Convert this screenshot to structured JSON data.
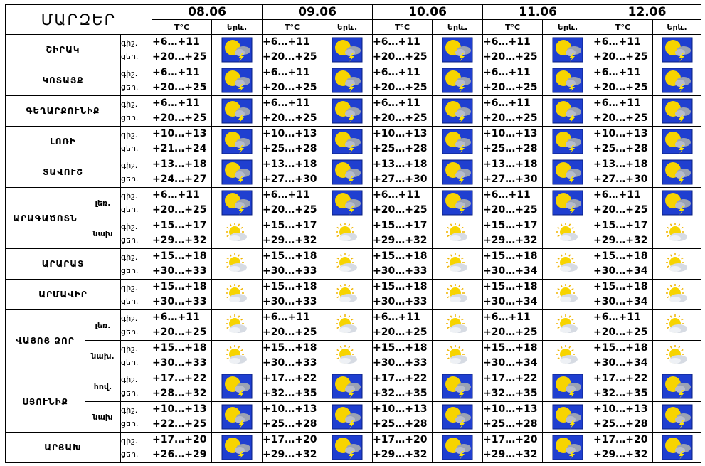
{
  "header": {
    "regions_title": "ՄԱՐԶԵՐ",
    "temp_label": "T°C",
    "weather_label": "Երև.",
    "dates": [
      "08.06",
      "09.06",
      "10.06",
      "11.06",
      "12.06"
    ]
  },
  "rows": [
    {
      "region": "ՇԻՐԱԿ",
      "tod": [
        "գիշ.",
        "ցեր."
      ],
      "temps": [
        [
          "+6…+11",
          "+20…+25"
        ],
        [
          "+6…+11",
          "+20…+25"
        ],
        [
          "+6…+11",
          "+20…+25"
        ],
        [
          "+6…+11",
          "+20…+25"
        ],
        [
          "+6…+11",
          "+20…+25"
        ]
      ],
      "icons": [
        "storm",
        "storm",
        "storm",
        "storm",
        "storm"
      ]
    },
    {
      "region": "ԿՈՏԱՅՔ",
      "tod": [
        "գիշ.",
        "ցեր."
      ],
      "temps": [
        [
          "+6…+11",
          "+20…+25"
        ],
        [
          "+6…+11",
          "+20…+25"
        ],
        [
          "+6…+11",
          "+20…+25"
        ],
        [
          "+6…+11",
          "+20…+25"
        ],
        [
          "+6…+11",
          "+20…+25"
        ]
      ],
      "icons": [
        "storm",
        "storm",
        "storm",
        "storm",
        "storm"
      ]
    },
    {
      "region": "ԳԵՂԱՐՔՈՒՆԻՔ",
      "tod": [
        "գիշ.",
        "ցեր."
      ],
      "temps": [
        [
          "+6…+11",
          "+20…+25"
        ],
        [
          "+6…+11",
          "+20…+25"
        ],
        [
          "+6…+11",
          "+20…+25"
        ],
        [
          "+6…+11",
          "+20…+25"
        ],
        [
          "+6…+11",
          "+20…+25"
        ]
      ],
      "icons": [
        "storm",
        "storm",
        "storm",
        "storm",
        "storm"
      ]
    },
    {
      "region": "ԼՈՌԻ",
      "tod": [
        "գիշ.",
        "ցեր."
      ],
      "temps": [
        [
          "+10…+13",
          "+21…+24"
        ],
        [
          "+10…+13",
          "+25…+28"
        ],
        [
          "+10…+13",
          "+25…+28"
        ],
        [
          "+10…+13",
          "+25…+28"
        ],
        [
          "+10…+13",
          "+25…+28"
        ]
      ],
      "icons": [
        "storm",
        "storm",
        "storm",
        "storm",
        "storm"
      ]
    },
    {
      "region": "ՏԱՎՈՒՇ",
      "tod": [
        "գիշ.",
        "ցեր."
      ],
      "temps": [
        [
          "+13…+18",
          "+24…+27"
        ],
        [
          "+13…+18",
          "+27…+30"
        ],
        [
          "+13…+18",
          "+27…+30"
        ],
        [
          "+13…+18",
          "+27…+30"
        ],
        [
          "+13…+18",
          "+27…+30"
        ]
      ],
      "icons": [
        "storm",
        "storm",
        "storm",
        "storm",
        "storm"
      ]
    },
    {
      "region": "ԱՐԱԳԱԾՈՏՆ",
      "subzones": [
        {
          "label": "լեռ.",
          "tod": [
            "գիշ.",
            "ցեր."
          ],
          "temps": [
            [
              "+6…+11",
              "+20…+25"
            ],
            [
              "+6…+11",
              "+20…+25"
            ],
            [
              "+6…+11",
              "+20…+25"
            ],
            [
              "+6…+11",
              "+20…+25"
            ],
            [
              "+6…+11",
              "+20…+25"
            ]
          ],
          "icons": [
            "storm",
            "storm",
            "storm",
            "storm",
            "storm"
          ]
        },
        {
          "label": "նախ",
          "tod": [
            "գիշ.",
            "ցեր."
          ],
          "temps": [
            [
              "+15…+17",
              "+29…+32"
            ],
            [
              "+15…+17",
              "+29…+32"
            ],
            [
              "+15…+17",
              "+29…+32"
            ],
            [
              "+15…+17",
              "+29…+32"
            ],
            [
              "+15…+17",
              "+29…+32"
            ]
          ],
          "icons": [
            "sunny",
            "sunny",
            "sunny",
            "sunny",
            "sunny"
          ]
        }
      ]
    },
    {
      "region": "ԱՐԱՐԱՏ",
      "tod": [
        "գիշ.",
        "ցեր."
      ],
      "temps": [
        [
          "+15…+18",
          "+30…+33"
        ],
        [
          "+15…+18",
          "+30…+33"
        ],
        [
          "+15…+18",
          "+30…+33"
        ],
        [
          "+15…+18",
          "+30…+34"
        ],
        [
          "+15…+18",
          "+30…+34"
        ]
      ],
      "icons": [
        "sunny",
        "sunny",
        "sunny",
        "sunny",
        "sunny"
      ]
    },
    {
      "region": "ԱՐՄԱՎԻՐ",
      "tod": [
        "գիշ.",
        "ցեր."
      ],
      "temps": [
        [
          "+15…+18",
          "+30…+33"
        ],
        [
          "+15…+18",
          "+30…+33"
        ],
        [
          "+15…+18",
          "+30…+33"
        ],
        [
          "+15…+18",
          "+30…+34"
        ],
        [
          "+15…+18",
          "+30…+34"
        ]
      ],
      "icons": [
        "sunny",
        "sunny",
        "sunny",
        "sunny",
        "sunny"
      ]
    },
    {
      "region": "ՎԱՅՈՑ ՁՈՐ",
      "subzones": [
        {
          "label": "լեռ.",
          "tod": [
            "գիշ.",
            "ցեր."
          ],
          "temps": [
            [
              "+6…+11",
              "+20…+25"
            ],
            [
              "+6…+11",
              "+20…+25"
            ],
            [
              "+6…+11",
              "+20…+25"
            ],
            [
              "+6…+11",
              "+20…+25"
            ],
            [
              "+6…+11",
              "+20…+25"
            ]
          ],
          "icons": [
            "sunny",
            "sunny",
            "sunny",
            "sunny",
            "sunny"
          ]
        },
        {
          "label": "նախ.",
          "tod": [
            "գիշ.",
            "ցեր."
          ],
          "temps": [
            [
              "+15…+18",
              "+30…+33"
            ],
            [
              "+15…+18",
              "+30…+33"
            ],
            [
              "+15…+18",
              "+30…+33"
            ],
            [
              "+15…+18",
              "+30…+34"
            ],
            [
              "+15…+18",
              "+30…+34"
            ]
          ],
          "icons": [
            "sunny",
            "sunny",
            "sunny",
            "sunny",
            "sunny"
          ]
        }
      ]
    },
    {
      "region": "ՍՅՈՒՆԻՔ",
      "subzones": [
        {
          "label": "հով.",
          "tod": [
            "գիշ.",
            "ցեր."
          ],
          "temps": [
            [
              "+17…+22",
              "+28…+32"
            ],
            [
              "+17…+22",
              "+32…+35"
            ],
            [
              "+17…+22",
              "+32…+35"
            ],
            [
              "+17…+22",
              "+32…+35"
            ],
            [
              "+17…+22",
              "+32…+35"
            ]
          ],
          "icons": [
            "storm",
            "storm",
            "storm",
            "storm",
            "storm"
          ]
        },
        {
          "label": "նախ",
          "tod": [
            "գիշ.",
            "ցեր."
          ],
          "temps": [
            [
              "+10…+13",
              "+22…+25"
            ],
            [
              "+10…+13",
              "+25…+28"
            ],
            [
              "+10…+13",
              "+25…+28"
            ],
            [
              "+10…+13",
              "+25…+28"
            ],
            [
              "+10…+13",
              "+25…+28"
            ]
          ],
          "icons": [
            "storm",
            "storm",
            "storm",
            "storm",
            "storm"
          ]
        }
      ]
    },
    {
      "region": "ԱՐՑԱԽ",
      "tod": [
        "գիշ.",
        "ցեր."
      ],
      "temps": [
        [
          "+17…+20",
          "+26…+29"
        ],
        [
          "+17…+20",
          "+29…+32"
        ],
        [
          "+17…+20",
          "+29…+32"
        ],
        [
          "+17…+20",
          "+29…+32"
        ],
        [
          "+17…+20",
          "+29…+32"
        ]
      ],
      "icons": [
        "storm",
        "storm",
        "storm",
        "storm",
        "storm"
      ]
    }
  ],
  "icon_names": {
    "storm": "thunderstorm-icon",
    "sunny": "sun-cloud-icon"
  },
  "colors": {
    "storm_bg": "#1f3fd0",
    "sun": "#f7d400",
    "border": "#000000"
  }
}
